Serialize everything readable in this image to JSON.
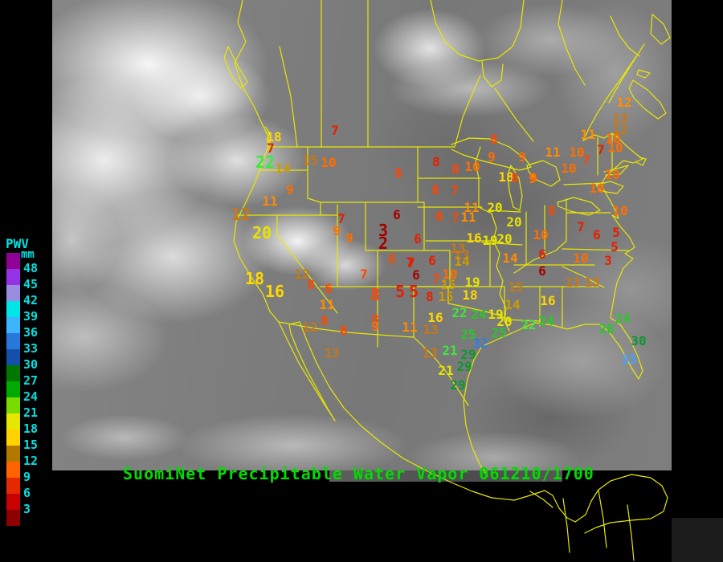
{
  "title": {
    "text": "SuomiNet Precipitable Water Vapor 061210/1700",
    "color": "#00dc00"
  },
  "legend": {
    "title": "PWV",
    "units": "mm",
    "text_color": "#00e0e0",
    "entries": [
      {
        "label": "48",
        "color": "#900096"
      },
      {
        "label": "45",
        "color": "#9632e6"
      },
      {
        "label": "42",
        "color": "#9a8ce0"
      },
      {
        "label": "39",
        "color": "#00e6e6"
      },
      {
        "label": "36",
        "color": "#3cb4ff"
      },
      {
        "label": "33",
        "color": "#2878dc"
      },
      {
        "label": "30",
        "color": "#1450aa"
      },
      {
        "label": "27",
        "color": "#007800"
      },
      {
        "label": "24",
        "color": "#00aa00"
      },
      {
        "label": "21",
        "color": "#78dc00"
      },
      {
        "label": "18",
        "color": "#e6e600"
      },
      {
        "label": "15",
        "color": "#ffd200"
      },
      {
        "label": "12",
        "color": "#b47800"
      },
      {
        "label": "9",
        "color": "#ff6400"
      },
      {
        "label": "6",
        "color": "#e62800"
      },
      {
        "label": "3",
        "color": "#c80000"
      }
    ],
    "bottom_color": "#8c0000"
  },
  "map": {
    "outline_color": "#e8e800",
    "background": "#000000"
  },
  "palette": {
    "dr": "#a50000",
    "r": "#e61e00",
    "ro": "#ff4600",
    "o": "#ff6e00",
    "lo": "#ff8c00",
    "br": "#c87814",
    "gd": "#cd9c00",
    "y": "#ffd800",
    "by": "#e8e400",
    "lg": "#3ce83c",
    "g": "#28c828",
    "dg": "#0f9632",
    "bl": "#2d7de8",
    "lb": "#46a0ff"
  },
  "stations": [
    [
      "7",
      417,
      163,
      "r"
    ],
    [
      "18",
      341,
      171,
      "y"
    ],
    [
      "7",
      337,
      185,
      "r"
    ],
    [
      "22",
      330,
      202,
      "lg",
      "b"
    ],
    [
      "14",
      352,
      210,
      "gd"
    ],
    [
      "15",
      386,
      200,
      "br"
    ],
    [
      "10",
      409,
      203,
      "o"
    ],
    [
      "9",
      361,
      237,
      "o"
    ],
    [
      "11",
      336,
      251,
      "lo"
    ],
    [
      "12",
      300,
      267,
      "br",
      "b"
    ],
    [
      "20",
      326,
      290,
      "by",
      "b"
    ],
    [
      "18",
      317,
      347,
      "y",
      "b"
    ],
    [
      "16",
      342,
      363,
      "y",
      "b"
    ],
    [
      "12",
      376,
      342,
      "br"
    ],
    [
      "8",
      387,
      355,
      "ro"
    ],
    [
      "6",
      409,
      360,
      "ro"
    ],
    [
      "11",
      407,
      380,
      "lo"
    ],
    [
      "8",
      404,
      400,
      "ro"
    ],
    [
      "12",
      386,
      408,
      "br"
    ],
    [
      "6",
      428,
      412,
      "ro"
    ],
    [
      "13",
      413,
      440,
      "br"
    ],
    [
      "7",
      425,
      273,
      "r"
    ],
    [
      "9",
      419,
      288,
      "o"
    ],
    [
      "9",
      435,
      297,
      "o"
    ],
    [
      "3",
      477,
      287,
      "dr",
      "b"
    ],
    [
      "2",
      477,
      303,
      "dr",
      "b"
    ],
    [
      "6",
      488,
      323,
      "ro"
    ],
    [
      "7",
      512,
      328,
      "r"
    ],
    [
      "7",
      453,
      342,
      "ro"
    ],
    [
      "8",
      467,
      367,
      "ro",
      "b"
    ],
    [
      "5",
      498,
      363,
      "r",
      "b"
    ],
    [
      "5",
      515,
      363,
      "r",
      "b"
    ],
    [
      "8",
      467,
      398,
      "ro"
    ],
    [
      "9",
      467,
      407,
      "o"
    ],
    [
      "11",
      510,
      408,
      "lo"
    ],
    [
      "13",
      536,
      411,
      "br"
    ],
    [
      "8",
      496,
      216,
      "ro"
    ],
    [
      "8",
      543,
      202,
      "r"
    ],
    [
      "8",
      567,
      211,
      "ro"
    ],
    [
      "10",
      588,
      208,
      "o"
    ],
    [
      "8",
      615,
      174,
      "ro"
    ],
    [
      "9",
      612,
      196,
      "o"
    ],
    [
      "9",
      650,
      196,
      "o"
    ],
    [
      "18",
      630,
      221,
      "y"
    ],
    [
      "8",
      641,
      222,
      "ro"
    ],
    [
      "9",
      664,
      222,
      "o"
    ],
    [
      "8",
      542,
      237,
      "ro"
    ],
    [
      "7",
      566,
      238,
      "ro"
    ],
    [
      "6",
      494,
      268,
      "dr"
    ],
    [
      "6",
      547,
      270,
      "ro"
    ],
    [
      "7",
      567,
      272,
      "ro"
    ],
    [
      "11",
      583,
      271,
      "lo"
    ],
    [
      "11",
      587,
      259,
      "lo"
    ],
    [
      "20",
      616,
      259,
      "by"
    ],
    [
      "20",
      640,
      277,
      "by"
    ],
    [
      "16",
      590,
      297,
      "y"
    ],
    [
      "19",
      610,
      300,
      "by"
    ],
    [
      "20",
      628,
      298,
      "by"
    ],
    [
      "6",
      520,
      298,
      "r"
    ],
    [
      "7",
      510,
      327,
      "r"
    ],
    [
      "6",
      538,
      325,
      "r"
    ],
    [
      "6",
      518,
      343,
      "dr"
    ],
    [
      "7",
      543,
      348,
      "ro"
    ],
    [
      "10",
      560,
      342,
      "o"
    ],
    [
      "13",
      570,
      310,
      "br"
    ],
    [
      "13",
      575,
      318,
      "br"
    ],
    [
      "14",
      575,
      326,
      "gd"
    ],
    [
      "15",
      558,
      355,
      "gd"
    ],
    [
      "19",
      588,
      352,
      "by"
    ],
    [
      "15",
      555,
      370,
      "gd"
    ],
    [
      "18",
      585,
      368,
      "y"
    ],
    [
      "8",
      535,
      370,
      "r"
    ],
    [
      "8",
      687,
      263,
      "ro"
    ],
    [
      "10",
      673,
      293,
      "o"
    ],
    [
      "7",
      723,
      283,
      "r"
    ],
    [
      "6",
      743,
      293,
      "r"
    ],
    [
      "14",
      635,
      322,
      "lo"
    ],
    [
      "6",
      675,
      317,
      "r"
    ],
    [
      "10",
      723,
      322,
      "o"
    ],
    [
      "3",
      757,
      325,
      "r"
    ],
    [
      "6",
      675,
      338,
      "dr"
    ],
    [
      "15",
      642,
      358,
      "br"
    ],
    [
      "16",
      682,
      375,
      "y"
    ],
    [
      "14",
      638,
      380,
      "gd"
    ],
    [
      "13",
      713,
      352,
      "br"
    ],
    [
      "13",
      737,
      352,
      "br"
    ],
    [
      "12",
      777,
      128,
      "lo"
    ],
    [
      "13",
      772,
      148,
      "br"
    ],
    [
      "12",
      772,
      162,
      "br"
    ],
    [
      "10",
      763,
      173,
      "o"
    ],
    [
      "7",
      748,
      187,
      "r"
    ],
    [
      "10",
      766,
      184,
      "o"
    ],
    [
      "11",
      732,
      168,
      "lo"
    ],
    [
      "11",
      688,
      190,
      "lo"
    ],
    [
      "10",
      718,
      190,
      "o"
    ],
    [
      "7",
      730,
      200,
      "ro"
    ],
    [
      "10",
      708,
      210,
      "o"
    ],
    [
      "10",
      762,
      218,
      "o"
    ],
    [
      "10",
      743,
      235,
      "o"
    ],
    [
      "9",
      663,
      223,
      "o"
    ],
    [
      "10",
      772,
      263,
      "o"
    ],
    [
      "5",
      767,
      290,
      "r"
    ],
    [
      "5",
      765,
      308,
      "r"
    ],
    [
      "16",
      542,
      396,
      "y"
    ],
    [
      "22",
      572,
      390,
      "lg"
    ],
    [
      "24",
      596,
      392,
      "g"
    ],
    [
      "19",
      617,
      392,
      "by"
    ],
    [
      "20",
      628,
      401,
      "by"
    ],
    [
      "25",
      583,
      417,
      "g"
    ],
    [
      "25",
      621,
      415,
      "g"
    ],
    [
      "32",
      598,
      428,
      "bl"
    ],
    [
      "13",
      535,
      440,
      "br"
    ],
    [
      "21",
      560,
      437,
      "lg"
    ],
    [
      "29",
      583,
      442,
      "dg"
    ],
    [
      "29",
      578,
      457,
      "dg"
    ],
    [
      "21",
      555,
      462,
      "by"
    ],
    [
      "29",
      570,
      480,
      "dg"
    ],
    [
      "22",
      658,
      405,
      "lg"
    ],
    [
      "24",
      680,
      400,
      "g"
    ],
    [
      "24",
      775,
      397,
      "g"
    ],
    [
      "26",
      755,
      410,
      "g"
    ],
    [
      "30",
      795,
      425,
      "dg"
    ],
    [
      "33",
      783,
      448,
      "lb"
    ]
  ]
}
